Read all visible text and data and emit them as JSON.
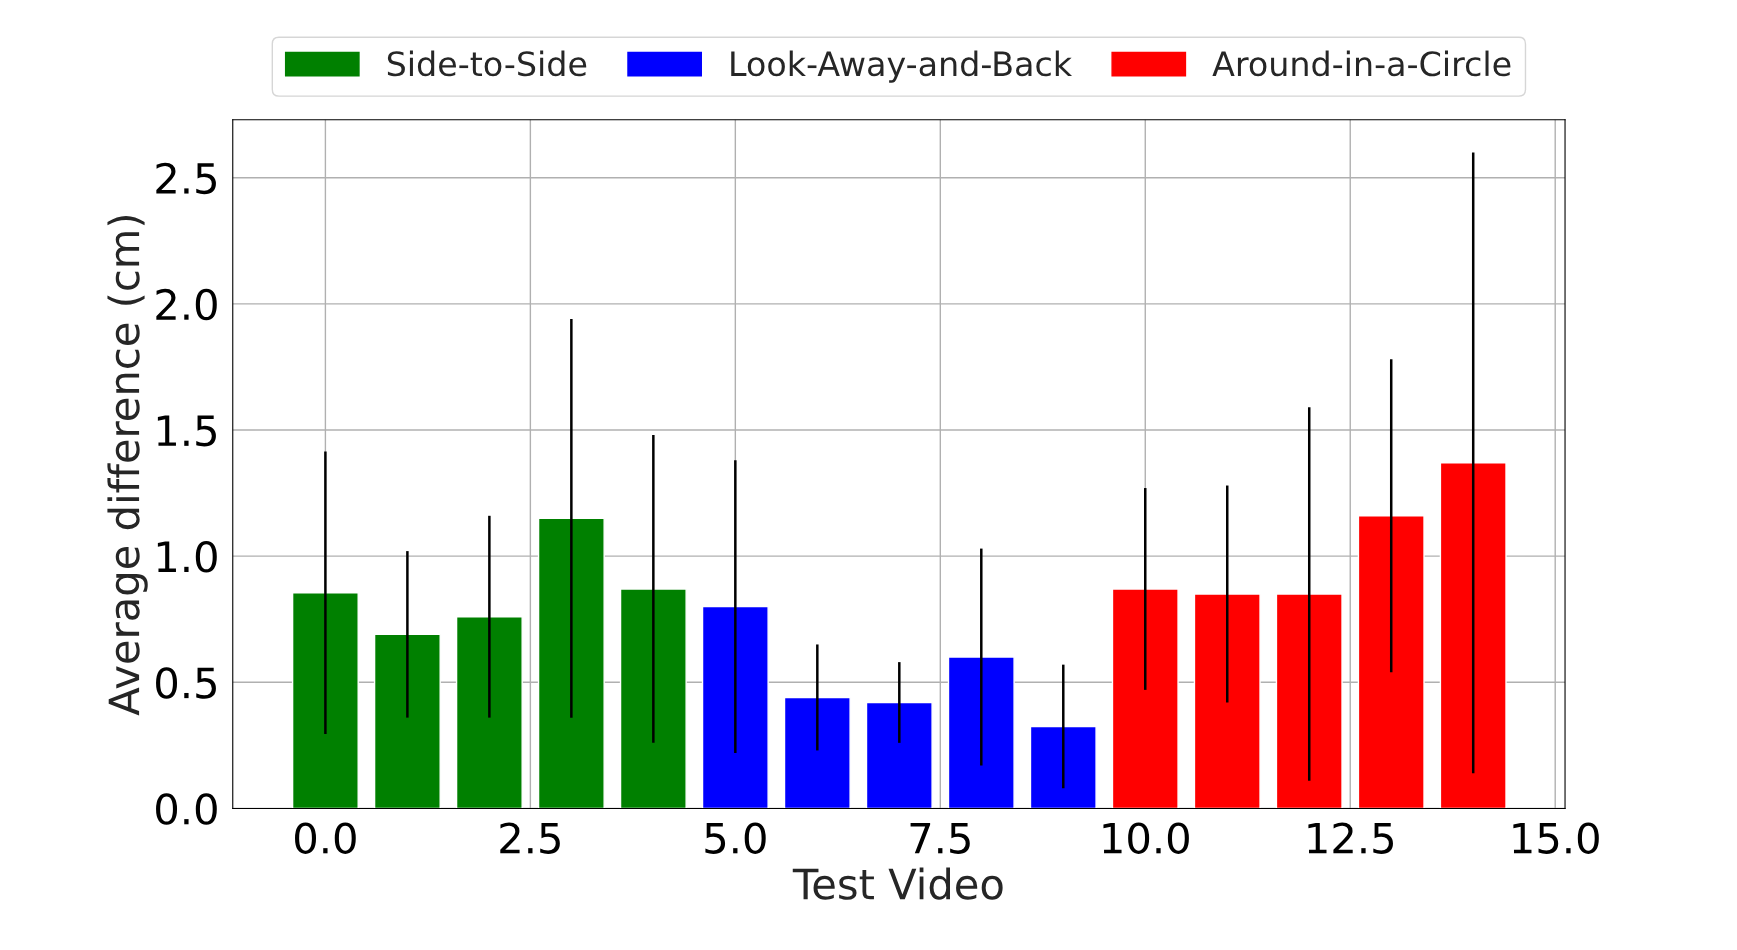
{
  "chart_data": {
    "type": "bar",
    "xlabel": "Test Video",
    "ylabel": "Average difference (cm)",
    "series": [
      {
        "name": "Side-to-Side",
        "color": "#008000",
        "x": [
          0,
          1,
          2,
          3,
          4
        ],
        "values": [
          0.855,
          0.69,
          0.76,
          1.15,
          0.87
        ],
        "errors": [
          0.56,
          0.33,
          0.4,
          0.79,
          0.61
        ]
      },
      {
        "name": "Look-Away-and-Back",
        "color": "#0000ff",
        "x": [
          5,
          6,
          7,
          8,
          9
        ],
        "values": [
          0.8,
          0.44,
          0.42,
          0.6,
          0.325
        ],
        "errors": [
          0.58,
          0.21,
          0.16,
          0.43,
          0.245
        ]
      },
      {
        "name": "Around-in-a-Circle",
        "color": "#ff0000",
        "x": [
          10,
          11,
          12,
          13,
          14
        ],
        "values": [
          0.87,
          0.85,
          0.85,
          1.16,
          1.37
        ],
        "errors": [
          0.4,
          0.43,
          0.74,
          0.62,
          1.23
        ]
      }
    ],
    "xlim": [
      -1.13,
      15.12
    ],
    "ylim": [
      0,
      2.73
    ],
    "xticks": [
      {
        "value": 0,
        "label": "0.0"
      },
      {
        "value": 2.5,
        "label": "2.5"
      },
      {
        "value": 5,
        "label": "5.0"
      },
      {
        "value": 7.5,
        "label": "7.5"
      },
      {
        "value": 10,
        "label": "10.0"
      },
      {
        "value": 12.5,
        "label": "12.5"
      },
      {
        "value": 15,
        "label": "15.0"
      }
    ],
    "yticks": [
      {
        "value": 0,
        "label": "0.0"
      },
      {
        "value": 0.5,
        "label": "0.5"
      },
      {
        "value": 1,
        "label": "1.0"
      },
      {
        "value": 1.5,
        "label": "1.5"
      },
      {
        "value": 2,
        "label": "2.0"
      },
      {
        "value": 2.5,
        "label": "2.5"
      }
    ],
    "grid": true,
    "legend": "top"
  }
}
